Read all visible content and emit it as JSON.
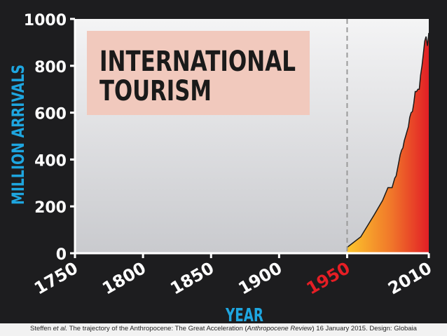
{
  "chart_data": {
    "type": "area",
    "title": "INTERNATIONAL TOURISM",
    "title_lines": [
      "INTERNATIONAL",
      "TOURISM"
    ],
    "xlabel": "YEAR",
    "ylabel": "MILLION ARRIVALS",
    "xlim": [
      1750,
      2010
    ],
    "ylim": [
      0,
      1000
    ],
    "x_ticks": [
      "1750",
      "1800",
      "1850",
      "1900",
      "1950",
      "2010"
    ],
    "x_tick_values": [
      1750,
      1800,
      1850,
      1900,
      1950,
      2010
    ],
    "highlight_tick": "1950",
    "y_ticks": [
      "0",
      "200",
      "400",
      "600",
      "800",
      "1000"
    ],
    "y_tick_values": [
      0,
      200,
      400,
      600,
      800,
      1000
    ],
    "reference_line_x": 1950,
    "grid": false,
    "series": [
      {
        "x": [
          1950,
          1960,
          1970,
          1975,
          1976,
          1980,
          1981,
          1982,
          1983,
          1985,
          1986,
          1988,
          1989,
          1990,
          1991,
          1992,
          1993,
          1994,
          1995,
          1996,
          1997,
          1998,
          1999,
          2000,
          2001,
          2002,
          2003,
          2004,
          2005,
          2006,
          2007,
          2008,
          2009,
          2010
        ],
        "y": [
          25,
          70,
          165,
          215,
          225,
          280,
          280,
          280,
          280,
          320,
          330,
          390,
          420,
          440,
          450,
          480,
          500,
          520,
          540,
          580,
          600,
          605,
          640,
          690,
          690,
          700,
          700,
          760,
          800,
          850,
          905,
          925,
          885,
          940
        ]
      }
    ]
  },
  "colors": {
    "background": "#1d1d1f",
    "axis_label": "#1ea6e0",
    "highlight": "#e51e25",
    "title_box": "#f1c9bd",
    "gradient_start": "#fcc72c",
    "gradient_end": "#e21f26",
    "reference_line": "#9a9a9a"
  },
  "credit": {
    "author": "Steffen",
    "etal": "et al.",
    "text1": " The trajectory of the Anthropocene: The Great Acceleration (",
    "journal": "Anthropocene Review",
    "text2": ") 16 January 2015. Design: Globaia"
  }
}
